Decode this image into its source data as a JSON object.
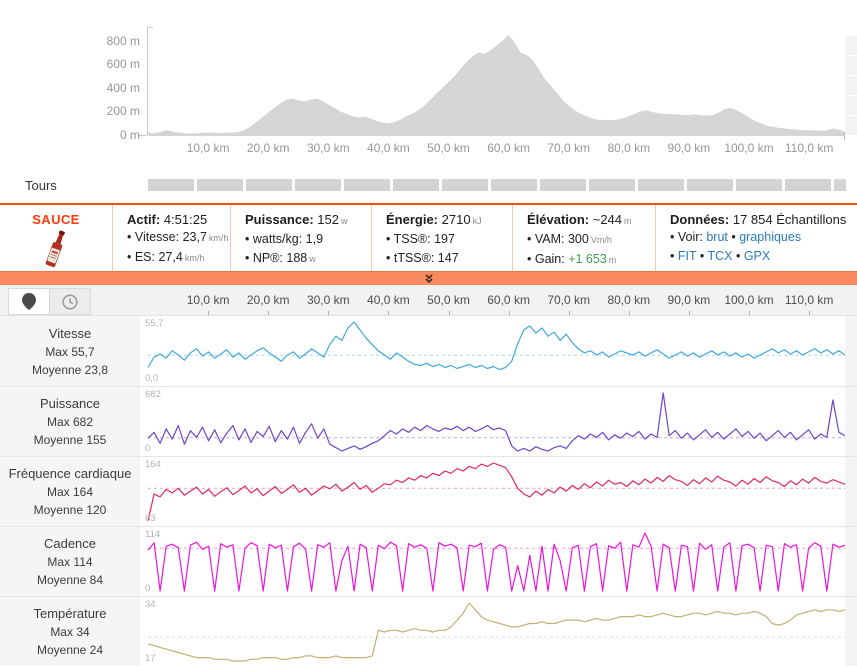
{
  "km_ticks": [
    "10,0 km",
    "20,0 km",
    "30,0 km",
    "40,0 km",
    "50,0 km",
    "60,0 km",
    "70,0 km",
    "80,0 km",
    "90,0 km",
    "100,0 km",
    "110,0 km"
  ],
  "laps": {
    "label": "Tours",
    "segments": [
      46,
      46,
      46,
      46,
      46,
      46,
      46,
      46,
      46,
      46,
      46,
      46,
      46,
      46,
      12
    ]
  },
  "summary": {
    "brand": "SAUCE",
    "sections": [
      {
        "title": "Actif:",
        "value": "4:51:25",
        "unit": "",
        "items": [
          {
            "label": "Vitesse:",
            "value": "23,7",
            "unit": "km/h"
          },
          {
            "label": "ES:",
            "value": "27,4",
            "unit": "km/h"
          }
        ]
      },
      {
        "title": "Puissance:",
        "value": "152",
        "unit": "w",
        "items": [
          {
            "label": "watts/kg:",
            "value": "1,9",
            "unit": ""
          },
          {
            "label": "NP®:",
            "value": "188",
            "unit": "w"
          }
        ]
      },
      {
        "title": "Énergie:",
        "value": "2710",
        "unit": "kJ",
        "items": [
          {
            "label": "TSS®:",
            "value": "197",
            "unit": ""
          },
          {
            "label": "tTSS®:",
            "value": "147",
            "unit": ""
          }
        ]
      },
      {
        "title": "Élévation:",
        "value": "~244",
        "unit": "m",
        "items": [
          {
            "label": "VAM:",
            "value": "300",
            "unit": "Vm/h"
          },
          {
            "label": "Gain:",
            "value": "+1 653",
            "unit": "m",
            "color": "#3f9e52"
          }
        ]
      },
      {
        "title": "Données:",
        "value": "17 854",
        "suffix": "Échantillons",
        "items": [
          {
            "label": "Voir:",
            "links": [
              "brut",
              "graphiques"
            ]
          },
          {
            "links": [
              "FIT",
              "TCX",
              "GPX"
            ]
          }
        ]
      }
    ]
  },
  "chart_data": [
    {
      "type": "area",
      "title": "Profil d'élévation",
      "ylabel_ticks": [
        {
          "v": 800,
          "label": "800 m"
        },
        {
          "v": 600,
          "label": "600 m"
        },
        {
          "v": 400,
          "label": "400 m"
        },
        {
          "v": 200,
          "label": "200 m"
        },
        {
          "v": 0,
          "label": "0 m"
        }
      ],
      "ylim": [
        0,
        850
      ],
      "xlim_km": [
        0,
        116
      ],
      "fill": "#d5d5d5",
      "values": [
        20,
        15,
        25,
        40,
        30,
        20,
        15,
        12,
        15,
        18,
        20,
        18,
        16,
        18,
        20,
        25,
        40,
        70,
        110,
        150,
        190,
        230,
        270,
        300,
        310,
        295,
        285,
        300,
        310,
        290,
        260,
        230,
        200,
        180,
        160,
        150,
        155,
        140,
        120,
        105,
        100,
        110,
        130,
        160,
        180,
        210,
        250,
        300,
        350,
        400,
        450,
        500,
        560,
        620,
        670,
        700,
        690,
        720,
        760,
        800,
        850,
        790,
        700,
        680,
        640,
        560,
        480,
        420,
        360,
        300,
        250,
        210,
        180,
        160,
        140,
        130,
        128,
        125,
        130,
        140,
        160,
        180,
        200,
        210,
        195,
        185,
        180,
        178,
        175,
        172,
        170,
        175,
        168,
        165,
        170,
        190,
        220,
        230,
        210,
        180,
        150,
        120,
        100,
        80,
        70,
        60,
        55,
        50,
        45,
        42,
        40,
        38,
        36,
        40,
        55,
        45,
        30
      ]
    },
    {
      "type": "line",
      "name": "Vitesse",
      "max_label": "Max 55,7",
      "avg_label": "Moyenne 23,8",
      "axis_max": "55,7",
      "axis_min": "0,0",
      "ymax": 55.7,
      "ymin": 0,
      "avg": 23.8,
      "color": "#41a8df",
      "values": [
        12,
        22,
        25,
        21,
        28,
        24,
        19,
        26,
        30,
        23,
        27,
        21,
        25,
        29,
        22,
        26,
        20,
        24,
        28,
        31,
        26,
        22,
        18,
        24,
        27,
        21,
        25,
        30,
        26,
        22,
        34,
        42,
        38,
        50,
        55.7,
        48,
        40,
        34,
        28,
        24,
        20,
        26,
        22,
        18,
        15,
        14,
        16,
        13,
        15,
        12,
        14,
        11,
        13,
        15,
        12,
        14,
        11,
        13,
        10,
        12,
        18,
        35,
        48,
        52,
        45,
        50,
        42,
        46,
        38,
        44,
        36,
        30,
        26,
        28,
        24,
        27,
        22,
        25,
        28,
        26,
        24,
        27,
        23,
        26,
        29,
        25,
        21,
        24,
        27,
        23,
        26,
        22,
        25,
        28,
        24,
        27,
        23,
        26,
        22,
        25,
        21,
        24,
        27,
        30,
        26,
        29,
        25,
        28,
        24,
        27,
        30,
        26,
        29,
        25,
        28,
        24
      ]
    },
    {
      "type": "line",
      "name": "Puissance",
      "max_label": "Max 682",
      "avg_label": "Moyenne 155",
      "axis_max": "682",
      "axis_min": "0",
      "ymax": 682,
      "ymin": 0,
      "avg": 155,
      "color": "#6a46c9",
      "values": [
        150,
        220,
        90,
        260,
        140,
        300,
        80,
        240,
        160,
        280,
        120,
        250,
        95,
        210,
        300,
        130,
        260,
        100,
        230,
        170,
        290,
        110,
        240,
        140,
        280,
        90,
        220,
        320,
        150,
        260,
        80,
        40,
        0,
        30,
        60,
        20,
        50,
        90,
        120,
        180,
        240,
        200,
        260,
        220,
        280,
        240,
        300,
        260,
        230,
        270,
        250,
        290,
        240,
        280,
        230,
        260,
        300,
        250,
        270,
        240,
        60,
        0,
        30,
        0,
        50,
        20,
        0,
        40,
        60,
        30,
        120,
        180,
        140,
        200,
        160,
        220,
        130,
        190,
        150,
        210,
        170,
        230,
        140,
        200,
        160,
        682,
        180,
        240,
        150,
        210,
        130,
        190,
        250,
        160,
        220,
        140,
        200,
        260,
        170,
        230,
        150,
        210,
        120,
        180,
        240,
        160,
        220,
        130,
        190,
        250,
        140,
        200,
        160,
        600,
        220,
        180
      ]
    },
    {
      "type": "line",
      "name": "Fréquence cardiaque",
      "max_label": "Max 164",
      "avg_label": "Moyenne 120",
      "axis_max": "164",
      "axis_min": "63",
      "ymax": 164,
      "ymin": 63,
      "avg": 120,
      "color": "#dd2864",
      "values": [
        63,
        110,
        105,
        118,
        112,
        120,
        108,
        115,
        122,
        110,
        118,
        106,
        114,
        121,
        109,
        116,
        124,
        112,
        119,
        107,
        115,
        123,
        111,
        118,
        126,
        113,
        120,
        108,
        116,
        124,
        119,
        127,
        115,
        122,
        130,
        118,
        125,
        113,
        120,
        128,
        126,
        134,
        130,
        138,
        134,
        142,
        138,
        146,
        142,
        150,
        146,
        154,
        150,
        158,
        154,
        162,
        158,
        164,
        160,
        156,
        140,
        120,
        110,
        105,
        115,
        108,
        118,
        112,
        122,
        115,
        125,
        118,
        128,
        121,
        131,
        124,
        134,
        127,
        130,
        123,
        133,
        126,
        136,
        129,
        139,
        132,
        142,
        135,
        132,
        125,
        135,
        128,
        138,
        131,
        141,
        134,
        131,
        124,
        134,
        127,
        137,
        130,
        140,
        133,
        130,
        123,
        133,
        126,
        136,
        129,
        139,
        132,
        129,
        135,
        131,
        127
      ]
    },
    {
      "type": "line",
      "name": "Cadence",
      "max_label": "Max 114",
      "avg_label": "Moyenne 84",
      "axis_max": "114",
      "axis_min": "0",
      "ymax": 114,
      "ymin": 0,
      "avg": 84,
      "color": "#ea16dc",
      "values": [
        80,
        95,
        0,
        88,
        92,
        85,
        0,
        90,
        96,
        82,
        88,
        0,
        93,
        86,
        91,
        0,
        84,
        95,
        89,
        0,
        92,
        85,
        90,
        0,
        87,
        94,
        82,
        0,
        91,
        86,
        95,
        0,
        60,
        88,
        0,
        92,
        85,
        0,
        90,
        83,
        96,
        89,
        0,
        93,
        86,
        91,
        84,
        0,
        95,
        88,
        92,
        85,
        0,
        90,
        87,
        94,
        0,
        82,
        91,
        86,
        0,
        50,
        0,
        70,
        0,
        88,
        0,
        92,
        60,
        0,
        85,
        90,
        0,
        87,
        93,
        0,
        89,
        84,
        96,
        0,
        91,
        86,
        114,
        88,
        0,
        92,
        85,
        0,
        90,
        87,
        0,
        94,
        82,
        91,
        0,
        86,
        95,
        0,
        89,
        92,
        85,
        0,
        90,
        87,
        0,
        93,
        86,
        91,
        0,
        84,
        95,
        88,
        0,
        92,
        86,
        90
      ]
    },
    {
      "type": "line",
      "name": "Température",
      "max_label": "Max 34",
      "avg_label": "Moyenne 24",
      "axis_max": "34",
      "axis_min": "17",
      "ymax": 34,
      "ymin": 17,
      "avg": 24,
      "color": "#c0b273",
      "values": [
        22,
        21.5,
        21,
        20.5,
        20,
        19.5,
        19,
        18.5,
        18,
        18,
        18,
        17.5,
        17.5,
        17.5,
        17,
        17,
        17,
        17.5,
        17.5,
        18,
        18,
        18,
        17.5,
        17.5,
        18,
        18,
        18.5,
        18.5,
        18,
        18,
        18,
        18.5,
        18,
        18,
        18,
        18,
        18,
        18.5,
        26,
        25.5,
        26,
        26,
        25.5,
        26,
        26.5,
        26,
        26,
        25.5,
        26,
        26,
        27,
        29,
        31,
        34,
        32,
        30,
        29,
        28.5,
        28,
        27.5,
        27,
        27,
        27.5,
        28,
        28,
        28.5,
        28,
        28,
        28.5,
        29,
        29,
        29,
        28.5,
        29,
        29.5,
        29,
        29,
        29.5,
        30,
        30,
        30,
        30.5,
        30,
        30,
        30.5,
        31,
        30.5,
        30,
        30,
        30.5,
        31,
        31,
        30.5,
        31,
        31.5,
        31,
        31,
        30.5,
        31,
        31,
        31.5,
        31,
        30,
        28,
        27.5,
        28,
        29,
        30.5,
        31,
        31.5,
        32,
        31.5,
        32,
        32,
        31.5,
        32
      ]
    }
  ]
}
